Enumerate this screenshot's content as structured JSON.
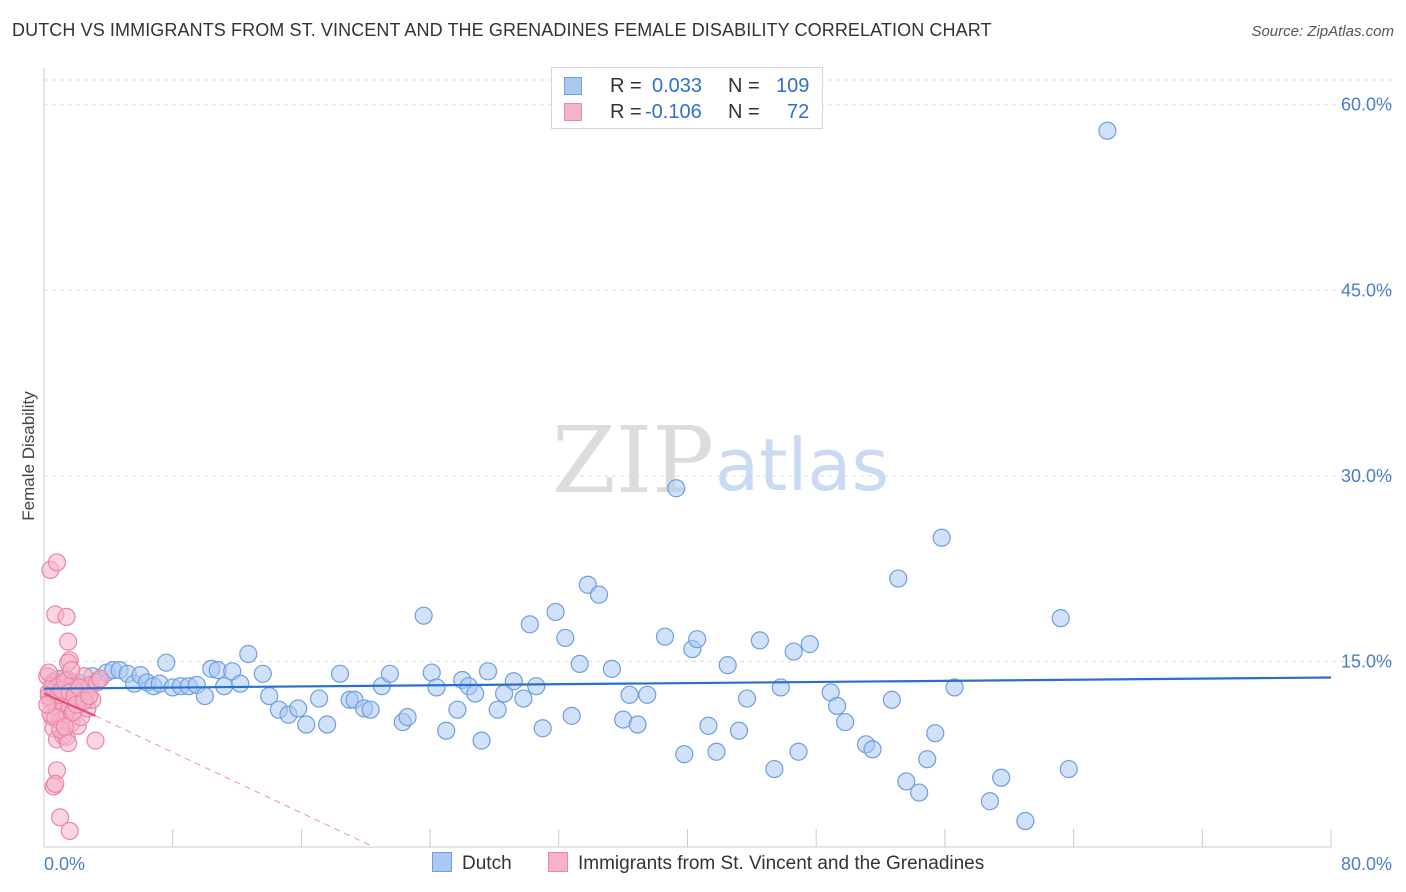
{
  "title": "DUTCH VS IMMIGRANTS FROM ST. VINCENT AND THE GRENADINES FEMALE DISABILITY CORRELATION CHART",
  "source": "Source: ZipAtlas.com",
  "watermark": {
    "zip": "ZIP",
    "atlas": "atlas"
  },
  "stats": [
    {
      "r_label": "R =",
      "r_value": "0.033",
      "n_label": "N =",
      "n_value": "109"
    },
    {
      "r_label": "R =",
      "r_value": "-0.106",
      "n_label": "N =",
      "n_value": "72"
    }
  ],
  "legend": [
    {
      "label": "Dutch"
    },
    {
      "label": "Immigrants from St. Vincent and the Grenadines"
    }
  ],
  "colors": {
    "dutch_fill": "#a9c9f2",
    "dutch_stroke": "#6f9fe0",
    "dutch_line": "#2a6fd0",
    "svg_fill": "#f6b3c8",
    "svg_stroke": "#ea86a6",
    "svg_line": "#e0507e",
    "grid": "#dddddd",
    "axis_label": "#4a7fc8"
  },
  "chart_data": {
    "type": "scatter",
    "title": "DUTCH VS IMMIGRANTS FROM ST. VINCENT AND THE GRENADINES FEMALE DISABILITY CORRELATION CHART",
    "xlabel": "",
    "ylabel": "Female Disability",
    "xlim": [
      0,
      80
    ],
    "ylim": [
      0,
      62
    ],
    "x_tick_labels": [
      "0.0%",
      "80.0%"
    ],
    "y_ticks": [
      15,
      30,
      45,
      60
    ],
    "y_tick_labels": [
      "15.0%",
      "30.0%",
      "45.0%",
      "60.0%"
    ],
    "grid": true,
    "legend_position": "bottom",
    "series": [
      {
        "name": "Dutch",
        "trend": {
          "x": [
            0,
            80
          ],
          "y": [
            12.8,
            13.7
          ]
        },
        "points": [
          [
            0.6,
            13.4
          ],
          [
            0.9,
            12.9
          ],
          [
            1.2,
            13.6
          ],
          [
            1.5,
            12.6
          ],
          [
            1.8,
            13.0
          ],
          [
            2.1,
            13.3
          ],
          [
            2.6,
            12.4
          ],
          [
            3.0,
            13.8
          ],
          [
            3.4,
            13.5
          ],
          [
            3.9,
            14.1
          ],
          [
            4.3,
            14.3
          ],
          [
            4.7,
            14.3
          ],
          [
            5.2,
            14.0
          ],
          [
            5.6,
            13.2
          ],
          [
            6.0,
            13.9
          ],
          [
            6.4,
            13.3
          ],
          [
            6.8,
            13.0
          ],
          [
            7.2,
            13.2
          ],
          [
            7.6,
            14.9
          ],
          [
            8.0,
            12.9
          ],
          [
            8.5,
            13.0
          ],
          [
            9.0,
            13.0
          ],
          [
            9.5,
            13.1
          ],
          [
            10.0,
            12.2
          ],
          [
            10.4,
            14.4
          ],
          [
            10.8,
            14.3
          ],
          [
            11.2,
            13.0
          ],
          [
            11.7,
            14.2
          ],
          [
            12.2,
            13.2
          ],
          [
            12.7,
            15.6
          ],
          [
            13.6,
            14.0
          ],
          [
            14.0,
            12.2
          ],
          [
            14.6,
            11.1
          ],
          [
            15.2,
            10.7
          ],
          [
            15.8,
            11.2
          ],
          [
            16.3,
            9.9
          ],
          [
            17.1,
            12.0
          ],
          [
            17.6,
            9.9
          ],
          [
            18.4,
            14.0
          ],
          [
            19.0,
            11.9
          ],
          [
            19.3,
            11.9
          ],
          [
            19.9,
            11.2
          ],
          [
            20.3,
            11.1
          ],
          [
            21.0,
            13.0
          ],
          [
            21.5,
            14.0
          ],
          [
            22.3,
            10.1
          ],
          [
            22.6,
            10.5
          ],
          [
            23.6,
            18.7
          ],
          [
            24.1,
            14.1
          ],
          [
            24.4,
            12.9
          ],
          [
            25.0,
            9.4
          ],
          [
            25.7,
            11.1
          ],
          [
            26.0,
            13.5
          ],
          [
            26.4,
            13.0
          ],
          [
            26.8,
            12.4
          ],
          [
            27.2,
            8.6
          ],
          [
            27.6,
            14.2
          ],
          [
            28.2,
            11.1
          ],
          [
            28.6,
            12.4
          ],
          [
            29.2,
            13.4
          ],
          [
            29.8,
            12.0
          ],
          [
            30.2,
            18.0
          ],
          [
            30.6,
            13.0
          ],
          [
            31.0,
            9.6
          ],
          [
            31.8,
            19.0
          ],
          [
            32.4,
            16.9
          ],
          [
            32.8,
            10.6
          ],
          [
            33.3,
            14.8
          ],
          [
            33.8,
            21.2
          ],
          [
            34.5,
            20.4
          ],
          [
            35.3,
            14.4
          ],
          [
            36.0,
            10.3
          ],
          [
            36.4,
            12.3
          ],
          [
            36.9,
            9.9
          ],
          [
            37.5,
            12.3
          ],
          [
            38.6,
            17.0
          ],
          [
            39.3,
            29.0
          ],
          [
            39.8,
            7.5
          ],
          [
            40.3,
            16.0
          ],
          [
            40.6,
            16.8
          ],
          [
            41.3,
            9.8
          ],
          [
            41.8,
            7.7
          ],
          [
            42.5,
            14.7
          ],
          [
            43.2,
            9.4
          ],
          [
            43.7,
            12.0
          ],
          [
            44.5,
            16.7
          ],
          [
            45.4,
            6.3
          ],
          [
            45.8,
            12.9
          ],
          [
            46.6,
            15.8
          ],
          [
            46.9,
            7.7
          ],
          [
            47.6,
            16.4
          ],
          [
            48.9,
            12.5
          ],
          [
            49.3,
            11.4
          ],
          [
            49.8,
            10.1
          ],
          [
            51.1,
            8.3
          ],
          [
            51.5,
            7.9
          ],
          [
            52.7,
            11.9
          ],
          [
            53.1,
            21.7
          ],
          [
            53.6,
            5.3
          ],
          [
            54.4,
            4.4
          ],
          [
            54.9,
            7.1
          ],
          [
            55.4,
            9.2
          ],
          [
            55.8,
            25.0
          ],
          [
            56.6,
            12.9
          ],
          [
            58.8,
            3.7
          ],
          [
            59.5,
            5.6
          ],
          [
            61.0,
            2.1
          ],
          [
            63.2,
            18.5
          ],
          [
            63.7,
            6.3
          ],
          [
            66.1,
            57.9
          ]
        ]
      },
      {
        "name": "Immigrants from St. Vincent and the Grenadines",
        "trend": {
          "x": [
            0,
            3.2
          ],
          "y": [
            12.4,
            10.6
          ]
        },
        "trend_extended": {
          "x": [
            3.2,
            20.5
          ],
          "y": [
            10.6,
            0
          ]
        },
        "points": [
          [
            0.2,
            13.8
          ],
          [
            0.3,
            12.5
          ],
          [
            0.4,
            11.9
          ],
          [
            0.5,
            10.5
          ],
          [
            0.6,
            13.2
          ],
          [
            0.6,
            9.6
          ],
          [
            0.7,
            12.8
          ],
          [
            0.8,
            11.2
          ],
          [
            0.8,
            8.7
          ],
          [
            0.9,
            13.6
          ],
          [
            1.0,
            12.1
          ],
          [
            1.0,
            10.2
          ],
          [
            1.1,
            13.1
          ],
          [
            1.2,
            11.6
          ],
          [
            1.2,
            9.0
          ],
          [
            1.3,
            12.6
          ],
          [
            1.4,
            10.8
          ],
          [
            1.4,
            8.9
          ],
          [
            1.5,
            13.5
          ],
          [
            1.5,
            12.0
          ],
          [
            1.6,
            11.4
          ],
          [
            1.7,
            10.0
          ],
          [
            1.7,
            12.9
          ],
          [
            1.8,
            13.3
          ],
          [
            1.9,
            11.0
          ],
          [
            2.0,
            12.4
          ],
          [
            2.1,
            9.8
          ],
          [
            2.1,
            13.0
          ],
          [
            2.2,
            11.8
          ],
          [
            2.3,
            10.5
          ],
          [
            2.4,
            12.6
          ],
          [
            2.5,
            13.8
          ],
          [
            2.6,
            12.0
          ],
          [
            2.7,
            11.2
          ],
          [
            2.8,
            12.8
          ],
          [
            2.9,
            13.1
          ],
          [
            3.0,
            11.9
          ],
          [
            3.2,
            8.6
          ],
          [
            3.3,
            13.3
          ],
          [
            3.5,
            13.6
          ],
          [
            0.4,
            22.4
          ],
          [
            0.8,
            23.0
          ],
          [
            0.7,
            18.8
          ],
          [
            1.4,
            18.6
          ],
          [
            1.5,
            16.6
          ],
          [
            1.6,
            15.1
          ],
          [
            1.5,
            14.9
          ],
          [
            0.8,
            6.2
          ],
          [
            0.6,
            4.9
          ],
          [
            0.7,
            5.1
          ],
          [
            1.0,
            2.4
          ],
          [
            1.6,
            1.3
          ],
          [
            0.3,
            12.2
          ],
          [
            0.5,
            13.0
          ],
          [
            0.9,
            12.3
          ],
          [
            1.1,
            12.7
          ],
          [
            1.3,
            13.4
          ],
          [
            1.6,
            12.5
          ],
          [
            1.9,
            12.2
          ],
          [
            2.2,
            12.9
          ],
          [
            0.4,
            10.8
          ],
          [
            0.7,
            10.5
          ],
          [
            1.0,
            9.5
          ],
          [
            1.3,
            9.7
          ],
          [
            1.5,
            8.4
          ],
          [
            1.8,
            10.9
          ],
          [
            2.0,
            11.5
          ],
          [
            2.5,
            11.8
          ],
          [
            2.8,
            12.2
          ],
          [
            0.2,
            11.5
          ],
          [
            0.3,
            14.1
          ],
          [
            1.7,
            14.3
          ]
        ]
      }
    ]
  }
}
